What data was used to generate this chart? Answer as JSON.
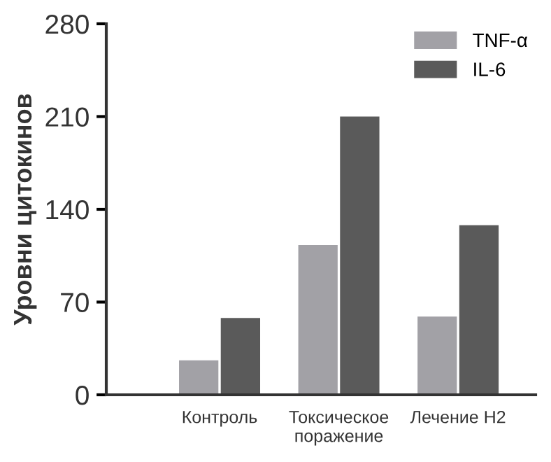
{
  "chart_data": {
    "type": "bar",
    "ylabel": "Уровни цитокинов",
    "categories": [
      "Контроль",
      "Токсическое\nпоражение",
      "Лечение H2"
    ],
    "series": [
      {
        "name": "TNF-α",
        "color": "#a2a1a6",
        "values": [
          26,
          113,
          59
        ]
      },
      {
        "name": "IL-6",
        "color": "#5a5a5a",
        "values": [
          58,
          210,
          128
        ]
      }
    ],
    "ylim": [
      0,
      280
    ],
    "yticks": [
      0,
      70,
      140,
      210,
      280
    ],
    "grid": false,
    "legend": "top right"
  }
}
